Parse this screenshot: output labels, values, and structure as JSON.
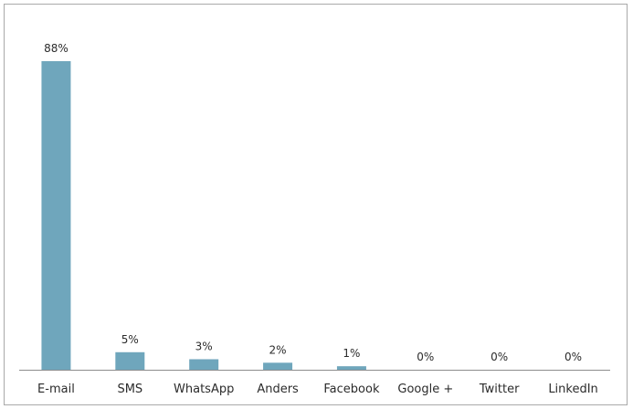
{
  "chart_data": {
    "type": "bar",
    "title": "",
    "xlabel": "",
    "ylabel": "",
    "categories": [
      "E-mail",
      "SMS",
      "WhatsApp",
      "Anders",
      "Facebook",
      "Google +",
      "Twitter",
      "LinkedIn"
    ],
    "values": [
      88,
      5,
      3,
      2,
      1,
      0,
      0,
      0
    ],
    "data_labels": [
      "88%",
      "5%",
      "3%",
      "2%",
      "1%",
      "0%",
      "0%",
      "0%"
    ],
    "ylim": [
      0,
      100
    ],
    "grid": false,
    "legend": "none",
    "bar_color": "#6fa6bc",
    "axis_color": "#8c8c8c"
  }
}
